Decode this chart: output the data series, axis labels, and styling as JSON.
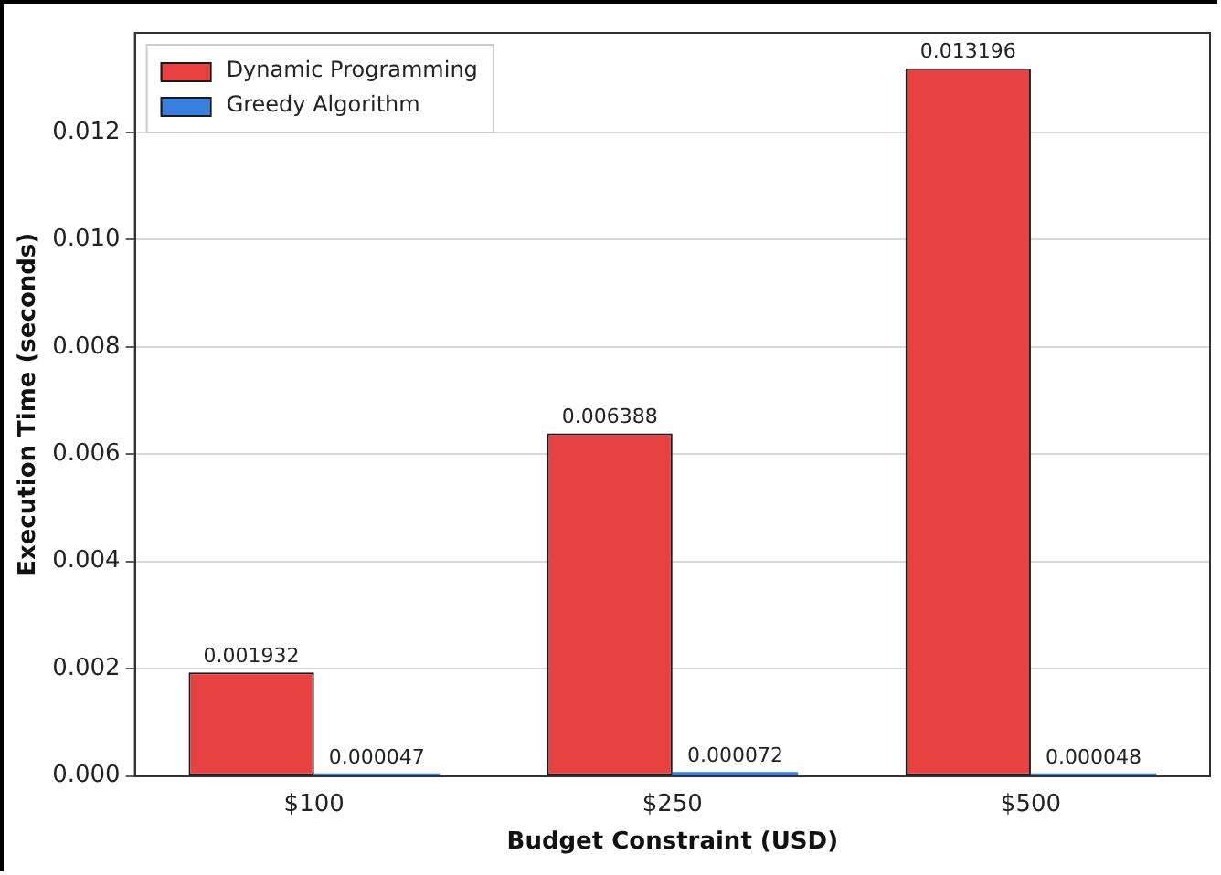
{
  "chart_data": {
    "type": "bar",
    "xlabel": "Budget Constraint (USD)",
    "ylabel": "Execution Time (seconds)",
    "categories": [
      "$100",
      "$250",
      "$500"
    ],
    "series": [
      {
        "name": "Dynamic Programming",
        "color": "#e84142",
        "values": [
          0.001932,
          0.006388,
          0.013196
        ],
        "value_labels": [
          "0.001932",
          "0.006388",
          "0.013196"
        ]
      },
      {
        "name": "Greedy Algorithm",
        "color": "#3a7fe0",
        "values": [
          4.7e-05,
          7.2e-05,
          4.8e-05
        ],
        "value_labels": [
          "0.000047",
          "0.000072",
          "0.000048"
        ]
      }
    ],
    "ylim": [
      0,
      0.013856
    ],
    "yticks": [
      {
        "value": 0,
        "label": "0.000"
      },
      {
        "value": 0.002,
        "label": "0.002"
      },
      {
        "value": 0.004,
        "label": "0.004"
      },
      {
        "value": 0.006,
        "label": "0.006"
      },
      {
        "value": 0.008,
        "label": "0.008"
      },
      {
        "value": 0.01,
        "label": "0.010"
      },
      {
        "value": 0.012,
        "label": "0.012"
      }
    ],
    "grid": "y",
    "legend": "top left"
  }
}
